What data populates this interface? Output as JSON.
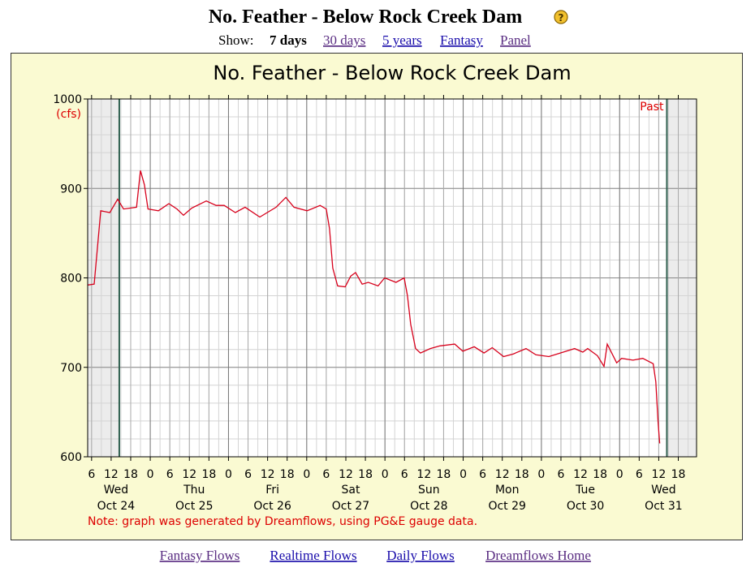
{
  "header": {
    "title": "No. Feather - Below Rock Creek Dam",
    "help_icon": "?",
    "show_label": "Show:",
    "options": [
      "7 days",
      "30 days",
      "5 years",
      "Fantasy",
      "Panel"
    ]
  },
  "chart_data": {
    "type": "line",
    "title": "No. Feather - Below Rock Creek Dam",
    "y_unit": "(cfs)",
    "note": "Note: graph was generated by Dreamflows, using PG&E gauge data.",
    "past_label": "Past",
    "color": "#d7001b",
    "grid": true,
    "shade_color": "#ececec",
    "window_color": "#2f5f4f",
    "window": [
      "Oct 24 14:30",
      "Oct 31 14:30"
    ],
    "xlim": [
      "Oct 24 4:48",
      "Oct 31 23:36"
    ],
    "ylim": [
      600,
      1000
    ],
    "yticks": [
      600,
      700,
      800,
      900,
      1000
    ],
    "y_minor_step": 20,
    "x_minor_step_hours": 3,
    "xticks": [
      {
        "value": "Oct 24 6:00",
        "label": "6"
      },
      {
        "value": "Oct 24 12:00",
        "label": "12"
      },
      {
        "value": "Oct 24 18:00",
        "label": "18"
      },
      {
        "value": "Oct 25 0:00",
        "label": "0"
      },
      {
        "value": "Oct 25 6:00",
        "label": "6"
      },
      {
        "value": "Oct 25 12:00",
        "label": "12"
      },
      {
        "value": "Oct 25 18:00",
        "label": "18"
      },
      {
        "value": "Oct 26 0:00",
        "label": "0"
      },
      {
        "value": "Oct 26 6:00",
        "label": "6"
      },
      {
        "value": "Oct 26 12:00",
        "label": "12"
      },
      {
        "value": "Oct 26 18:00",
        "label": "18"
      },
      {
        "value": "Oct 27 0:00",
        "label": "0"
      },
      {
        "value": "Oct 27 6:00",
        "label": "6"
      },
      {
        "value": "Oct 27 12:00",
        "label": "12"
      },
      {
        "value": "Oct 27 18:00",
        "label": "18"
      },
      {
        "value": "Oct 28 0:00",
        "label": "0"
      },
      {
        "value": "Oct 28 6:00",
        "label": "6"
      },
      {
        "value": "Oct 28 12:00",
        "label": "12"
      },
      {
        "value": "Oct 28 18:00",
        "label": "18"
      },
      {
        "value": "Oct 29 0:00",
        "label": "0"
      },
      {
        "value": "Oct 29 6:00",
        "label": "6"
      },
      {
        "value": "Oct 29 12:00",
        "label": "12"
      },
      {
        "value": "Oct 29 18:00",
        "label": "18"
      },
      {
        "value": "Oct 30 0:00",
        "label": "0"
      },
      {
        "value": "Oct 30 6:00",
        "label": "6"
      },
      {
        "value": "Oct 30 12:00",
        "label": "12"
      },
      {
        "value": "Oct 30 18:00",
        "label": "18"
      },
      {
        "value": "Oct 31 0:00",
        "label": "0"
      },
      {
        "value": "Oct 31 6:00",
        "label": "6"
      },
      {
        "value": "Oct 31 12:00",
        "label": "12"
      },
      {
        "value": "Oct 31 18:00",
        "label": "18"
      }
    ],
    "day_labels": [
      {
        "value": "Oct 24 12:00",
        "weekday": "Wed",
        "date": "Oct 24"
      },
      {
        "value": "Oct 25 12:00",
        "weekday": "Thu",
        "date": "Oct 25"
      },
      {
        "value": "Oct 26 12:00",
        "weekday": "Fri",
        "date": "Oct 26"
      },
      {
        "value": "Oct 27 12:00",
        "weekday": "Sat",
        "date": "Oct 27"
      },
      {
        "value": "Oct 28 12:00",
        "weekday": "Sun",
        "date": "Oct 28"
      },
      {
        "value": "Oct 29 12:00",
        "weekday": "Mon",
        "date": "Oct 29"
      },
      {
        "value": "Oct 30 12:00",
        "weekday": "Tue",
        "date": "Oct 30"
      },
      {
        "value": "Oct 31 12:00",
        "weekday": "Wed",
        "date": "Oct 31"
      }
    ],
    "x": [
      "Oct 24 4:48",
      "Oct 24 6:48",
      "Oct 24 8:48",
      "Oct 24 11:36",
      "Oct 24 14:00",
      "Oct 24 15:48",
      "Oct 24 17:48",
      "Oct 24 19:48",
      "Oct 24 21:00",
      "Oct 24 22:12",
      "Oct 24 23:18",
      "Oct 25 2:30",
      "Oct 25 5:42",
      "Oct 25 8:12",
      "Oct 25 10:12",
      "Oct 25 12:42",
      "Oct 25 17:12",
      "Oct 25 20:12",
      "Oct 25 22:42",
      "Oct 26 2:06",
      "Oct 26 5:06",
      "Oct 26 9:36",
      "Oct 26 14:36",
      "Oct 26 17:36",
      "Oct 26 20:06",
      "Oct 27 0:06",
      "Oct 27 4:06",
      "Oct 27 6:00",
      "Oct 27 7:00",
      "Oct 27 8:00",
      "Oct 27 9:30",
      "Oct 27 11:48",
      "Oct 27 13:30",
      "Oct 27 15:00",
      "Oct 27 17:00",
      "Oct 27 18:54",
      "Oct 27 21:54",
      "Oct 27 23:54",
      "Oct 28 3:24",
      "Oct 28 5:54",
      "Oct 28 6:54",
      "Oct 28 7:54",
      "Oct 28 9:24",
      "Oct 28 10:54",
      "Oct 28 13:54",
      "Oct 28 16:54",
      "Oct 28 21:24",
      "Oct 28 23:54",
      "Oct 29 3:24",
      "Oct 29 6:24",
      "Oct 29 8:54",
      "Oct 29 12:24",
      "Oct 29 15:24",
      "Oct 29 19:18",
      "Oct 29 22:18",
      "Oct 30 2:18",
      "Oct 30 6:42",
      "Oct 30 10:12",
      "Oct 30 12:42",
      "Oct 30 14:12",
      "Oct 30 17:12",
      "Oct 30 19:12",
      "Oct 30 20:12",
      "Oct 30 23:06",
      "Oct 31 0:36",
      "Oct 31 4:06",
      "Oct 31 7:06",
      "Oct 31 10:18",
      "Oct 31 11:06",
      "Oct 31 11:48",
      "Oct 31 12:18"
    ],
    "values": [
      792,
      793,
      875,
      873,
      888,
      877,
      878,
      879,
      920,
      904,
      877,
      875,
      883,
      877,
      870,
      878,
      886,
      881,
      881,
      873,
      879,
      868,
      879,
      890,
      879,
      875,
      881,
      877,
      855,
      811,
      791,
      790,
      802,
      806,
      793,
      795,
      791,
      800,
      795,
      800,
      780,
      748,
      721,
      716,
      721,
      724,
      726,
      718,
      723,
      716,
      722,
      712,
      715,
      721,
      714,
      712,
      717,
      721,
      717,
      721,
      713,
      701,
      726,
      705,
      710,
      708,
      710,
      704,
      684,
      639,
      615
    ]
  },
  "footer": {
    "links": [
      "Fantasy Flows",
      "Realtime Flows",
      "Daily Flows",
      "Dreamflows Home"
    ]
  }
}
